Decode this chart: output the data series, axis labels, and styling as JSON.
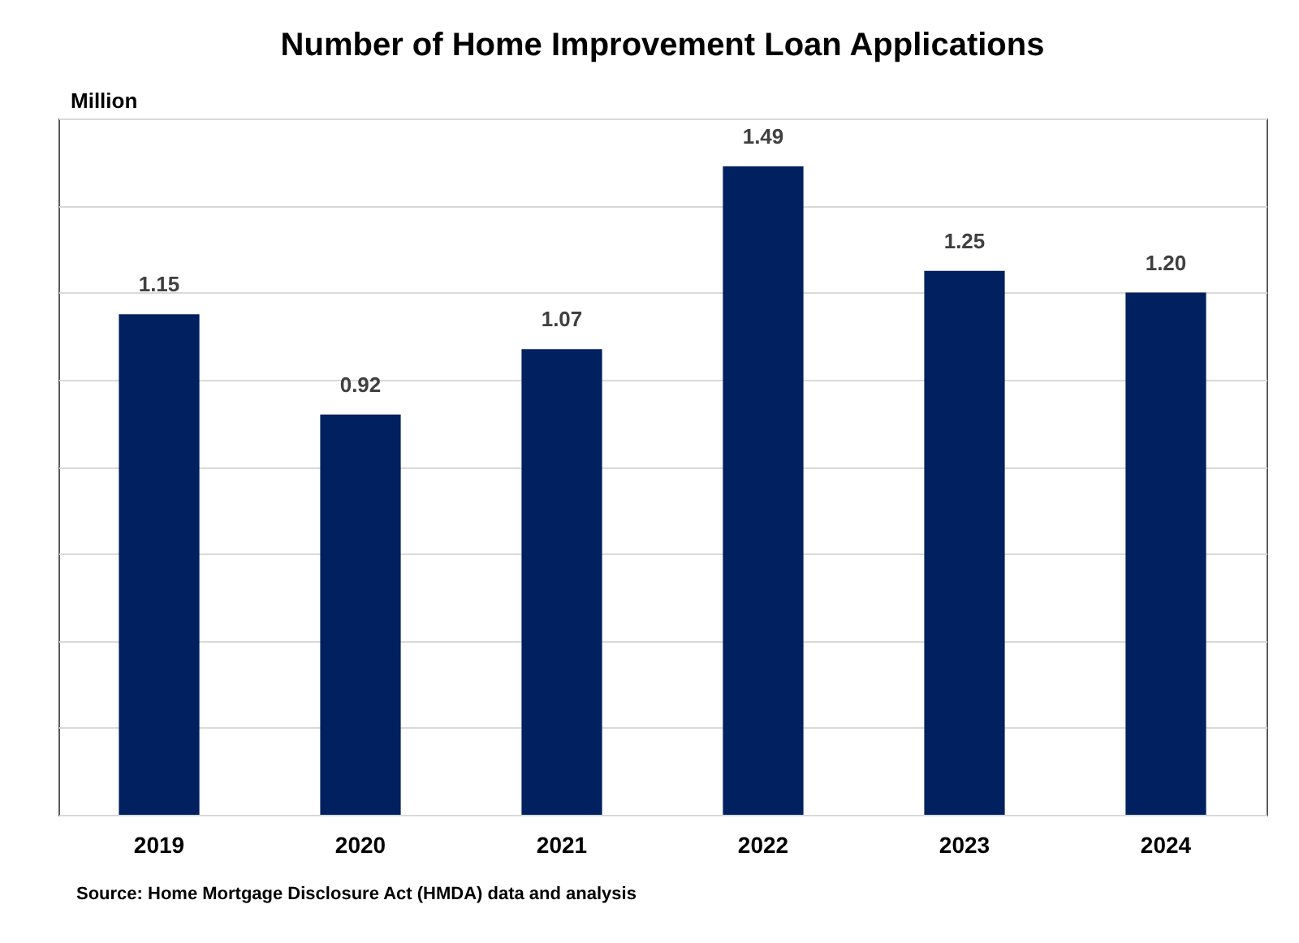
{
  "chart_data": {
    "type": "bar",
    "title": "Number of Home Improvement Loan Applications",
    "ylabel": "Million",
    "categories": [
      "2019",
      "2020",
      "2021",
      "2022",
      "2023",
      "2024"
    ],
    "values": [
      1.15,
      0.92,
      1.07,
      1.49,
      1.25,
      1.2
    ],
    "value_labels": [
      "1.15",
      "0.92",
      "1.07",
      "1.49",
      "1.25",
      "1.20"
    ],
    "color": "#002060",
    "ylim": [
      0,
      1.6
    ],
    "yticks": [
      {
        "value": 0,
        "label": null
      },
      {
        "value": 0.2,
        "label": null
      },
      {
        "value": 0.4,
        "label": null
      },
      {
        "value": 0.6,
        "label": null
      },
      {
        "value": 0.8,
        "label": null
      },
      {
        "value": 1.0,
        "label": null
      },
      {
        "value": 1.2,
        "label": null
      },
      {
        "value": 1.4,
        "label": null
      },
      {
        "value": 1.6,
        "label": null
      }
    ],
    "grid": "y",
    "tick_labels": "x",
    "annotations": [
      "Source: Home Mortgage Disclosure Act (HMDA) data and analysis"
    ]
  }
}
